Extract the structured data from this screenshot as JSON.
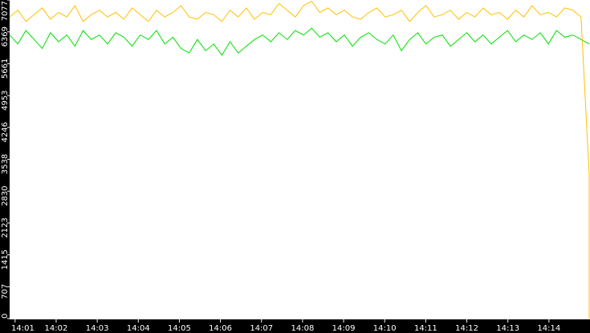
{
  "chart_data": {
    "type": "line",
    "title": "",
    "xlabel": "",
    "ylabel": "",
    "x_range": [
      "14:00:52",
      "14:15:00"
    ],
    "ylim": [
      0,
      7077
    ],
    "y_ticks": [
      "0",
      "707",
      "1415",
      "2123",
      "2830",
      "3538",
      "4246",
      "4953",
      "5661",
      "6369",
      "7077"
    ],
    "x_ticks": [
      "14:01",
      "14:02",
      "14:03",
      "14:04",
      "14:05",
      "14:06",
      "14:07",
      "14:08",
      "14:09",
      "14:10",
      "14:11",
      "14:12",
      "14:13",
      "14:14"
    ],
    "grid": false,
    "legend": "none",
    "series": [
      {
        "color": "#ffc000",
        "values": [
          6700,
          6850,
          6600,
          6750,
          6900,
          6650,
          6800,
          6700,
          6950,
          6600,
          6750,
          6850,
          6700,
          6800,
          6650,
          6900,
          6750,
          6600,
          6850,
          6700,
          6800,
          6950,
          6700,
          6650,
          6800,
          6750,
          6600,
          6850,
          6700,
          6900,
          6650,
          6800,
          6750,
          7000,
          6850,
          6700,
          6950,
          7050,
          6800,
          6900,
          6750,
          6850,
          6700,
          6650,
          6800,
          6900,
          6700,
          6750,
          6850,
          6600,
          6800,
          6950,
          6700,
          6750,
          6850,
          6650,
          6800,
          6700,
          6900,
          6750,
          6800,
          6650,
          6850,
          6700,
          6950,
          6750,
          6800,
          6700,
          6900,
          6850,
          6700,
          3200,
          0
        ]
      },
      {
        "color": "#00e000",
        "values": [
          6300,
          6100,
          6400,
          6200,
          6000,
          6350,
          6150,
          6300,
          6050,
          6400,
          6200,
          6300,
          6100,
          6350,
          6250,
          6050,
          6300,
          6200,
          6400,
          6100,
          6250,
          6000,
          5900,
          6200,
          5950,
          6100,
          5850,
          6150,
          5900,
          6050,
          6200,
          6300,
          6150,
          6350,
          6200,
          6400,
          6300,
          6450,
          6250,
          6350,
          6150,
          6300,
          6050,
          6250,
          6350,
          6200,
          6100,
          6300,
          5950,
          6200,
          6350,
          6100,
          6250,
          6300,
          6050,
          6200,
          6350,
          6150,
          6300,
          6100,
          6250,
          6400,
          6150,
          6300,
          6200,
          6350,
          6100,
          6400,
          6250,
          6300,
          6200,
          6100,
          6100
        ]
      }
    ],
    "background": "#ffffff",
    "axis_background": "#000000"
  }
}
